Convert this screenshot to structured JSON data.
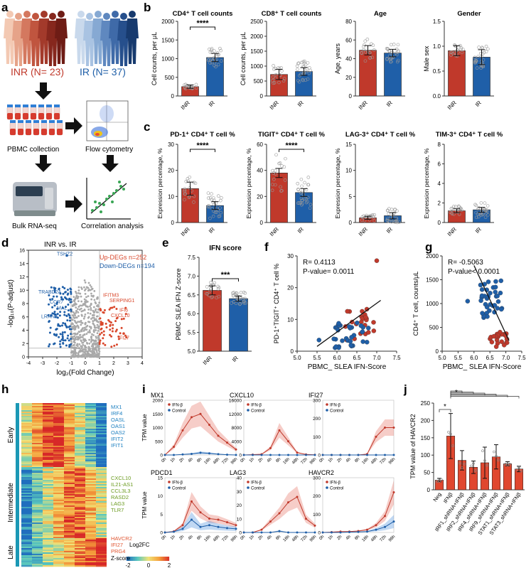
{
  "colors": {
    "inr": "#c0392b",
    "ir": "#1f5fa8",
    "grey": "#a9a9a9",
    "accent_red": "#d9472b",
    "teal": "#0e8fa3"
  },
  "panel_a": {
    "letter": "a",
    "inr_label": "INR (N= 23)",
    "ir_label": "IR (N= 37)",
    "steps": [
      "PBMC collection",
      "Flow cytometry",
      "Bulk RNA-seq",
      "Correlation analysis"
    ]
  },
  "panel_b": {
    "letter": "b",
    "charts": [
      {
        "title": "CD4⁺ T cell counts",
        "ylabel": "Cell counts, per μL",
        "ylim": [
          0,
          2000
        ],
        "ticks": [
          0,
          500,
          1000,
          1500,
          2000
        ],
        "values": [
          250,
          1030
        ],
        "errors": [
          45,
          110
        ],
        "sig": "****"
      },
      {
        "title": "CD8⁺ T cell counts",
        "ylabel": "Cell counts, per μL",
        "ylim": [
          0,
          2500
        ],
        "ticks": [
          0,
          500,
          1000,
          1500,
          2000,
          2500
        ],
        "values": [
          720,
          820
        ],
        "errors": [
          170,
          130
        ],
        "sig": ""
      },
      {
        "title": "Age",
        "ylabel": "Age, years",
        "ylim": [
          0,
          80
        ],
        "ticks": [
          0,
          20,
          40,
          60,
          80
        ],
        "values": [
          49,
          46
        ],
        "errors": [
          5,
          4
        ],
        "sig": ""
      },
      {
        "title": "Gender",
        "ylabel": "Male sex",
        "ylim": [
          0,
          1.5
        ],
        "ticks": [
          "0.0",
          "0.5",
          "1.0",
          "1.5"
        ],
        "values": [
          0.91,
          0.78
        ],
        "errors": [
          0.1,
          0.15
        ],
        "sig": ""
      }
    ],
    "xcats": [
      "INR",
      "IR"
    ]
  },
  "panel_c": {
    "letter": "c",
    "charts": [
      {
        "title": "PD-1⁺ CD4⁺ T cell %",
        "ylabel": "Expression percentage, %",
        "ylim": [
          0,
          30
        ],
        "ticks": [
          0,
          10,
          20,
          30
        ],
        "values": [
          13,
          6.5
        ],
        "errors": [
          2.5,
          1.5
        ],
        "sig": "****"
      },
      {
        "title": "TIGIT⁺ CD4⁺ T cell %",
        "ylabel": "Expression percentage, %",
        "ylim": [
          0,
          60
        ],
        "ticks": [
          0,
          20,
          40,
          60
        ],
        "values": [
          38,
          23
        ],
        "errors": [
          3.5,
          3
        ],
        "sig": "****"
      },
      {
        "title": "LAG-3⁺ CD4⁺ T cell %",
        "ylabel": "Expression percentage, %",
        "ylim": [
          0,
          15
        ],
        "ticks": [
          0,
          5,
          10,
          15
        ],
        "values": [
          0.9,
          1.3
        ],
        "errors": [
          0.3,
          0.6
        ],
        "sig": ""
      },
      {
        "title": "TIM-3⁺ CD4⁺ T cell %",
        "ylabel": "Expression percentage, %",
        "ylim": [
          0,
          8
        ],
        "ticks": [
          0,
          2,
          4,
          6,
          8
        ],
        "values": [
          1.2,
          1.3
        ],
        "errors": [
          0.2,
          0.25
        ],
        "sig": ""
      }
    ]
  },
  "panel_d": {
    "letter": "d",
    "title": "INR vs. IR",
    "up_label": "Up-DEGs n=252",
    "down_label": "Down-DEGs n=194",
    "xlabel": "log₂(Fold Change)",
    "ylabel": "-log₁₀(P-adjust)",
    "xticks": [
      -4,
      -3,
      -2,
      -1,
      0,
      1,
      2,
      3,
      4
    ],
    "yticks": [
      0,
      2,
      4,
      6,
      8,
      10,
      12,
      14,
      16
    ],
    "down_genes": [
      "TSHZ2",
      "TRABD2A",
      "CCR7",
      "MAL",
      "LRRN3"
    ],
    "up_genes": [
      "IFITM3",
      "SERPING1",
      "IFI6",
      "CXCL10",
      "IFI27"
    ]
  },
  "panel_e": {
    "letter": "e",
    "title": "IFN score",
    "ylabel": "PBMC SLEA IFN  Z-score",
    "ylim": [
      5.0,
      7.5
    ],
    "ticks": [
      "5.0",
      "5.5",
      "6.0",
      "6.5",
      "7.0",
      "7.5"
    ],
    "values": [
      6.62,
      6.4
    ],
    "errors": [
      0.12,
      0.07
    ],
    "sig": "***",
    "xcats": [
      "INR",
      "IR"
    ]
  },
  "panel_f": {
    "letter": "f",
    "r": "R= 0.4113",
    "p": "P-value= 0.0011",
    "ylabel": "PD-1⁺TIGIT⁺ CD4⁺ T cell %",
    "xlabel": "PBMC_ SLEA IFN-Score",
    "xticks": [
      "5.0",
      "5.5",
      "6.0",
      "6.5",
      "7.0",
      "7.5"
    ],
    "yticks": [
      0,
      10,
      20,
      30
    ]
  },
  "panel_g": {
    "letter": "g",
    "r": "R= -0.5063",
    "p": "P-value< 0.0001",
    "ylabel": "CD4⁺ T cell, counts/μL",
    "xlabel": "PBMC_ SLEA IFN-Score",
    "xticks": [
      "5.0",
      "5.5",
      "6.0",
      "6.5",
      "7.0",
      "7.5"
    ],
    "yticks": [
      0,
      500,
      1000,
      1500,
      2000
    ]
  },
  "panel_h": {
    "letter": "h",
    "groups": [
      "Early",
      "Intermediate",
      "Late"
    ],
    "early_genes": [
      "MX1",
      "IRF4",
      "OASL",
      "OAS1",
      "OAS2",
      "IFIT2",
      "IFIT1"
    ],
    "inter_genes": [
      "CXCL10",
      "IL21-AS1",
      "CCL3L3",
      "RASD2",
      "LAG3",
      "TLR7"
    ],
    "late_genes": [
      "HAVCR2",
      "IFI27",
      "PRG4"
    ],
    "timepoints": [
      "1h",
      "2h",
      "4h",
      "8h",
      "16h",
      "48h",
      "72h",
      "96h"
    ],
    "legend_title": "Log2FC\nZ-score",
    "legend_ticks": [
      "-2",
      "0",
      "2"
    ]
  },
  "panel_i": {
    "letter": "i",
    "ylabel": "TPM value",
    "legend": [
      "IFN-β",
      "Control"
    ],
    "timepoints": [
      "0h",
      "1h",
      "2h",
      "4h",
      "8h",
      "16h",
      "48h",
      "72h",
      "96h"
    ],
    "charts": [
      {
        "title": "MX1",
        "ylim": [
          0,
          2000
        ],
        "ticks": [
          0,
          500,
          1000,
          1500,
          2000
        ],
        "ifn": [
          0,
          300,
          900,
          1380,
          1500,
          1100,
          700,
          450,
          200
        ],
        "ctrl": [
          0,
          0,
          20,
          40,
          80,
          60,
          30,
          10,
          0
        ]
      },
      {
        "title": "CXCL10",
        "ylim": [
          0,
          16000
        ],
        "ticks": [
          0,
          4000,
          8000,
          12000,
          16000
        ],
        "ifn": [
          0,
          100,
          200,
          2000,
          7200,
          4000,
          700,
          150,
          50
        ],
        "ctrl": [
          0,
          0,
          0,
          0,
          0,
          0,
          0,
          0,
          0
        ]
      },
      {
        "title": "IFI27",
        "ylim": [
          0,
          300
        ],
        "ticks": [
          0,
          100,
          200,
          300
        ],
        "ifn": [
          0,
          0,
          0,
          0,
          0,
          5,
          100,
          150,
          150
        ],
        "ctrl": [
          0,
          0,
          0,
          0,
          0,
          0,
          0,
          0,
          0
        ]
      },
      {
        "title": "PDCD1",
        "ylim": [
          0,
          15
        ],
        "ticks": [
          0,
          5,
          10,
          15
        ],
        "ifn": [
          0,
          0.3,
          2,
          8.5,
          5.5,
          3.8,
          3.5,
          2.8,
          2
        ],
        "ctrl": [
          0,
          0.2,
          1,
          3.5,
          1.5,
          2,
          1.5,
          1.2,
          1
        ]
      },
      {
        "title": "LAG3",
        "ylim": [
          0,
          40
        ],
        "ticks": [
          0,
          10,
          20,
          30,
          40
        ],
        "ifn": [
          0,
          0,
          2,
          8,
          14,
          22,
          26,
          10,
          5
        ],
        "ctrl": [
          0,
          0,
          0,
          0,
          1,
          0,
          0,
          0,
          0
        ]
      },
      {
        "title": "HAVCR2",
        "ylim": [
          0,
          300
        ],
        "ticks": [
          0,
          100,
          200,
          300
        ],
        "ifn": [
          0,
          2,
          5,
          5,
          8,
          15,
          40,
          90,
          220
        ],
        "ctrl": [
          0,
          0,
          0,
          2,
          3,
          5,
          15,
          30,
          60
        ]
      }
    ]
  },
  "panel_j": {
    "letter": "j",
    "ylabel": "TPM value of HAVCR2",
    "ylim": [
      0,
      250
    ],
    "ticks": [
      0,
      50,
      100,
      150,
      200,
      250
    ],
    "categories": [
      "Neg",
      "IFNβ",
      "IRF1_shRNA+IFNβ",
      "IRF2_shRNA+IFNβ",
      "IRF4_shRNA+IFNβ",
      "IRF9_shRNA+IFNβ",
      "STAT1_shRNA+IFNβ",
      "STAT3_shRNA+IFNβ"
    ],
    "values": [
      28,
      155,
      85,
      65,
      78,
      95,
      75,
      60
    ],
    "errors": [
      5,
      65,
      28,
      18,
      45,
      35,
      6,
      8
    ],
    "sig": "*"
  }
}
